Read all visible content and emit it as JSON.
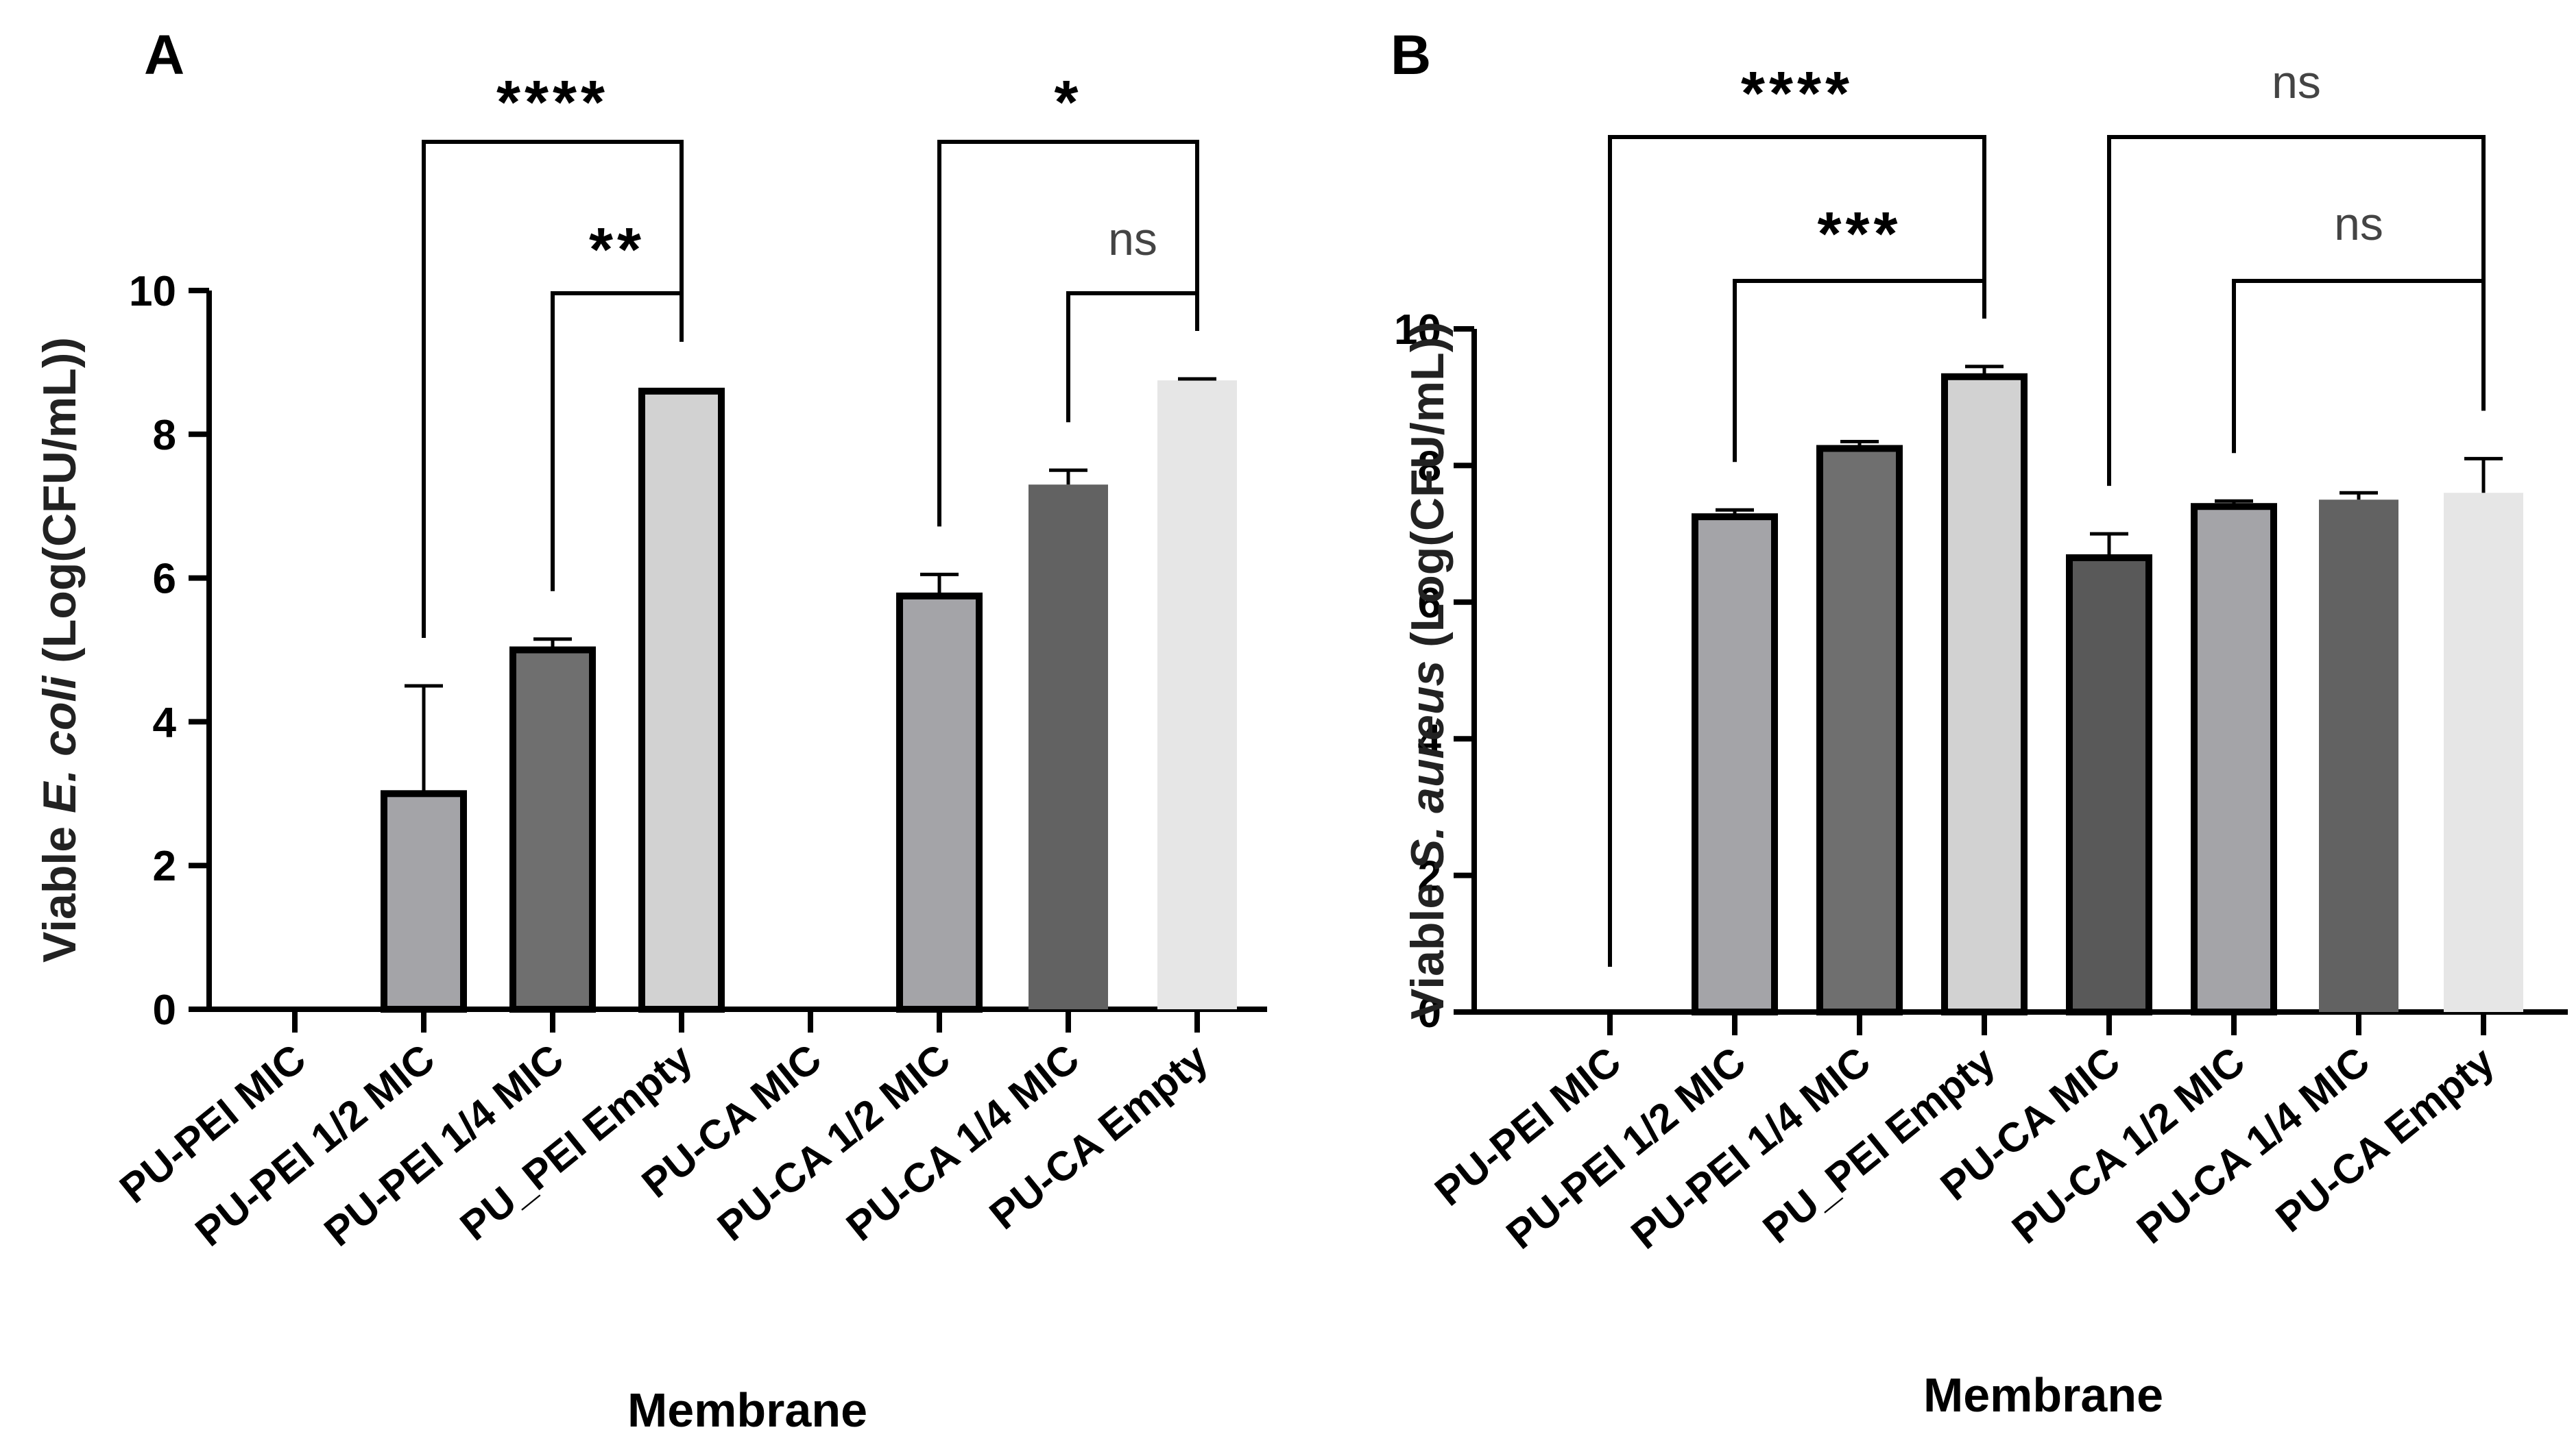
{
  "chart_data": [
    {
      "type": "bar",
      "panel": "A",
      "ylabel_parts": [
        "Viable ",
        "E. coli",
        " (Log(CFU/mL))"
      ],
      "xlabel": "Membrane",
      "ylim": [
        0,
        10
      ],
      "yticks": [
        "0",
        "2",
        "4",
        "6",
        "8",
        "10"
      ],
      "categories": [
        "PU-PEI MIC",
        "PU-PEI 1/2 MIC",
        "PU-PEI 1/4 MIC",
        "PU_PEI Empty",
        "PU-CA MIC",
        "PU-CA 1/2 MIC",
        "PU-CA 1/4 MIC",
        "PU-CA Empty"
      ],
      "values": [
        0,
        3.0,
        5.0,
        8.6,
        0,
        5.75,
        7.3,
        8.75
      ],
      "errors": [
        0,
        1.5,
        0.15,
        0.02,
        0,
        0.3,
        0.2,
        0.02
      ],
      "fills": [
        "#a4a4a8",
        "#a4a4a8",
        "#6f6f6f",
        "#d2d2d2",
        "#a4a4a8",
        "#a4a4a8",
        "#626262",
        "#e6e6e6"
      ],
      "outlined": [
        true,
        true,
        true,
        true,
        true,
        true,
        false,
        false
      ],
      "comparisons": [
        {
          "from": 1,
          "to": 3,
          "label": "****",
          "level": 1
        },
        {
          "from": 2,
          "to": 3,
          "label": "**",
          "level": 0
        },
        {
          "from": 5,
          "to": 7,
          "label": "*",
          "level": 1
        },
        {
          "from": 6,
          "to": 7,
          "label": "ns",
          "level": 0
        }
      ]
    },
    {
      "type": "bar",
      "panel": "B",
      "ylabel_parts": [
        "Viable ",
        "S. aureus",
        " (Log(CFU/mL))"
      ],
      "xlabel": "Membrane",
      "ylim": [
        0,
        10
      ],
      "yticks": [
        "0",
        "2",
        "4",
        "6",
        "8",
        "10"
      ],
      "categories": [
        "PU-PEI MIC",
        "PU-PEI 1/2 MIC",
        "PU-PEI 1/4 MIC",
        "PU_PEI Empty",
        "PU-CA MIC",
        "PU-CA 1/2 MIC",
        "PU-CA 1/4 MIC",
        "PU-CA Empty"
      ],
      "values": [
        0,
        7.25,
        8.25,
        9.3,
        6.65,
        7.4,
        7.5,
        7.6
      ],
      "errors": [
        0,
        0.1,
        0.1,
        0.15,
        0.35,
        0.08,
        0.1,
        0.5
      ],
      "fills": [
        "#a4a4a8",
        "#a4a4a8",
        "#6f6f6f",
        "#d2d2d2",
        "#595959",
        "#a4a4a8",
        "#626262",
        "#e6e6e6"
      ],
      "outlined": [
        true,
        true,
        true,
        true,
        true,
        true,
        false,
        false
      ],
      "comparisons": [
        {
          "from": 0,
          "to": 3,
          "label": "****",
          "level": 1
        },
        {
          "from": 1,
          "to": 3,
          "label": "***",
          "level": 0
        },
        {
          "from": 4,
          "to": 7,
          "label": "ns",
          "level": 1
        },
        {
          "from": 5,
          "to": 7,
          "label": "ns",
          "level": 0
        }
      ]
    }
  ]
}
